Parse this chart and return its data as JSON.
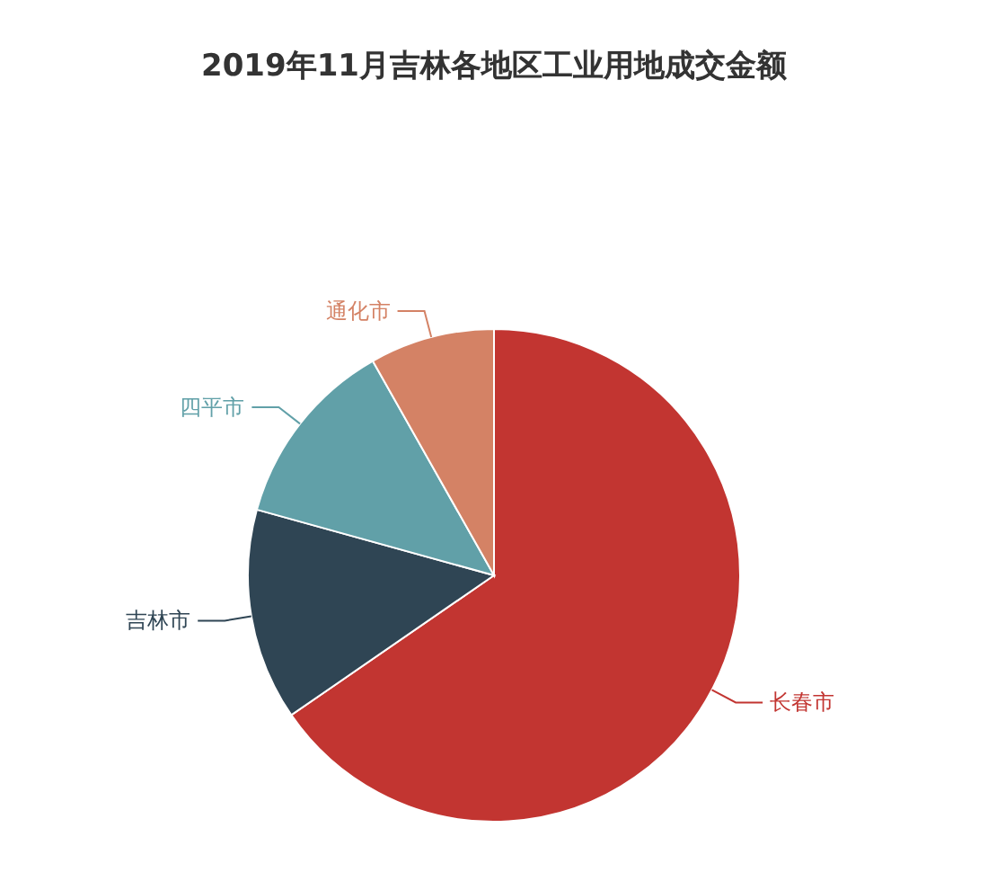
{
  "chart_data": {
    "type": "pie",
    "title": "2019年11月吉林各地区工业用地成交金额",
    "categories": [
      "长春市",
      "吉林市",
      "四平市",
      "通化市"
    ],
    "values": [
      65.4,
      13.9,
      12.5,
      8.2
    ],
    "colors": [
      "#c23531",
      "#2f4554",
      "#61a0a8",
      "#d48265"
    ]
  }
}
